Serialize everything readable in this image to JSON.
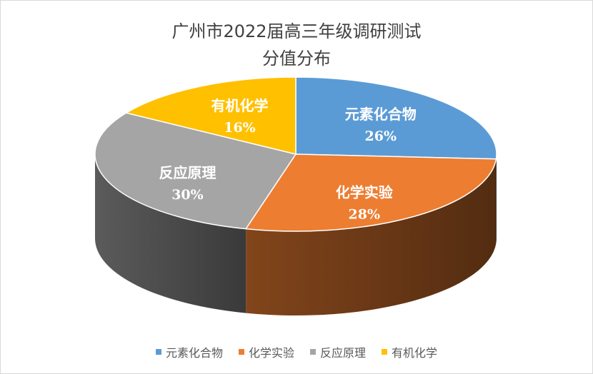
{
  "chart_data": {
    "type": "pie",
    "title": [
      "广州市2022届高三年级调研测试",
      "分值分布"
    ],
    "slices": [
      {
        "label": "元素化合物",
        "value": 26,
        "value_label": "26%",
        "color": "#5b9bd5"
      },
      {
        "label": "化学实验",
        "value": 28,
        "value_label": "28%",
        "color": "#ed7d31"
      },
      {
        "label": "反应原理",
        "value": 30,
        "value_label": "30%",
        "color": "#a5a5a5"
      },
      {
        "label": "有机化学",
        "value": 16,
        "value_label": "16%",
        "color": "#ffc000"
      }
    ],
    "legend_position": "bottom",
    "style": "3d"
  }
}
